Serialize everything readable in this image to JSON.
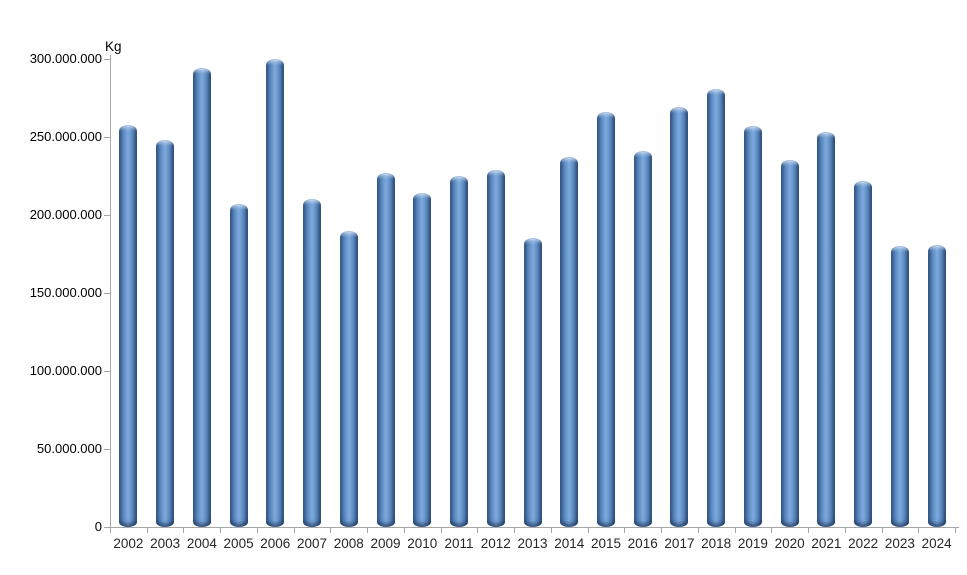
{
  "chart_data": {
    "type": "bar",
    "title": "",
    "unit_label": "Kg",
    "xlabel": "",
    "ylabel": "Kg",
    "categories": [
      "2002",
      "2003",
      "2004",
      "2005",
      "2006",
      "2007",
      "2008",
      "2009",
      "2010",
      "2011",
      "2012",
      "2013",
      "2014",
      "2015",
      "2016",
      "2017",
      "2018",
      "2019",
      "2020",
      "2021",
      "2022",
      "2023",
      "2024"
    ],
    "values": [
      258000000,
      248000000,
      294000000,
      207000000,
      300000000,
      210000000,
      190000000,
      227000000,
      214000000,
      225000000,
      229000000,
      185000000,
      237000000,
      266000000,
      241000000,
      269000000,
      281000000,
      257000000,
      235000000,
      253000000,
      222000000,
      180000000,
      181000000
    ],
    "ylim": [
      0,
      300000000
    ],
    "ytick_interval": 50000000,
    "ytick_labels": [
      "0",
      "50.000.000",
      "100.000.000",
      "150.000.000",
      "200.000.000",
      "250.000.000",
      "300.000.000"
    ],
    "grid": false,
    "legend": false,
    "bar_style": "cylinder-3d",
    "colors": {
      "bar_main": "#4f81bd",
      "bar_light": "#7da9dc",
      "bar_dark": "#2c5180",
      "axis": "#a6a6a6",
      "text": "#000000"
    }
  }
}
